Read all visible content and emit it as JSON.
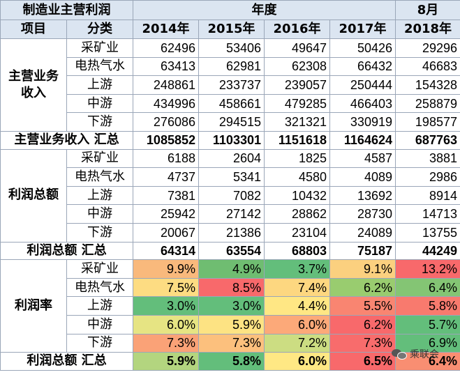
{
  "header": {
    "title": "制造业主营利润",
    "year_group": "年度",
    "month_group": "8月",
    "col_item": "项目",
    "col_category": "分类",
    "years": [
      "2014年",
      "2015年",
      "2016年",
      "2017年",
      "2018年"
    ]
  },
  "revenue": {
    "label": "主营业务收入",
    "rows": [
      {
        "cat": "采矿业",
        "vals": [
          "62496",
          "53406",
          "49647",
          "50426",
          "29296"
        ]
      },
      {
        "cat": "电热气水",
        "vals": [
          "63413",
          "62981",
          "62308",
          "66432",
          "46683"
        ]
      },
      {
        "cat": "上游",
        "vals": [
          "248861",
          "233737",
          "239057",
          "250444",
          "154328"
        ]
      },
      {
        "cat": "中游",
        "vals": [
          "434996",
          "458661",
          "479285",
          "466403",
          "258879"
        ]
      },
      {
        "cat": "下游",
        "vals": [
          "276086",
          "294515",
          "321321",
          "330919",
          "198577"
        ]
      }
    ],
    "total_label": "主营业务收入 汇总",
    "total": [
      "1085852",
      "1103301",
      "1151618",
      "1164624",
      "687763"
    ]
  },
  "profit": {
    "label": "利润总额",
    "rows": [
      {
        "cat": "采矿业",
        "vals": [
          "6188",
          "2604",
          "1825",
          "4587",
          "3881"
        ]
      },
      {
        "cat": "电热气水",
        "vals": [
          "4737",
          "5341",
          "4580",
          "4089",
          "2986"
        ]
      },
      {
        "cat": "上游",
        "vals": [
          "7381",
          "7082",
          "10432",
          "13692",
          "8914"
        ]
      },
      {
        "cat": "中游",
        "vals": [
          "25942",
          "27142",
          "28862",
          "28730",
          "14713"
        ]
      },
      {
        "cat": "下游",
        "vals": [
          "20067",
          "21386",
          "23104",
          "24089",
          "13755"
        ]
      }
    ],
    "total_label": "利润总额 汇总",
    "total": [
      "64314",
      "63554",
      "68803",
      "75187",
      "44249"
    ]
  },
  "margin": {
    "label": "利润率",
    "rows": [
      {
        "cat": "采矿业",
        "vals": [
          "9.9%",
          "4.9%",
          "3.7%",
          "9.1%",
          "13.2%"
        ],
        "colors": [
          "#f9b97c",
          "#6fbd71",
          "#63be7b",
          "#fbd07f",
          "#f8696b"
        ]
      },
      {
        "cat": "电热气水",
        "vals": [
          "7.5%",
          "8.5%",
          "7.4%",
          "6.2%",
          "6.4%"
        ],
        "colors": [
          "#fddc82",
          "#f8696b",
          "#fdd780",
          "#99cc6f",
          "#84c574"
        ]
      },
      {
        "cat": "上游",
        "vals": [
          "3.0%",
          "3.0%",
          "4.4%",
          "5.5%",
          "5.8%"
        ],
        "colors": [
          "#63be7b",
          "#63be7b",
          "#ffe784",
          "#f98571",
          "#f87a6e"
        ]
      },
      {
        "cat": "中游",
        "vals": [
          "6.0%",
          "5.9%",
          "6.0%",
          "6.2%",
          "5.7%"
        ],
        "colors": [
          "#e6e483",
          "#fde383",
          "#fca979",
          "#f8696b",
          "#63be7b"
        ]
      },
      {
        "cat": "下游",
        "vals": [
          "7.3%",
          "7.3%",
          "7.2%",
          "7.3%",
          "6.9%"
        ],
        "colors": [
          "#faa277",
          "#fcc07d",
          "#ccdd82",
          "#f86c6c",
          "#63be7b"
        ]
      }
    ],
    "total_label": "利润总额 汇总",
    "total": [
      "5.9%",
      "5.8%",
      "6.0%",
      "6.5%",
      "6.4%"
    ],
    "total_colors": [
      "#b3d57f",
      "#63be7b",
      "#ffe884",
      "#f8696b",
      "#f98e72"
    ]
  },
  "watermark": {
    "text": "乘联会",
    "icon": "wechat-icon"
  }
}
